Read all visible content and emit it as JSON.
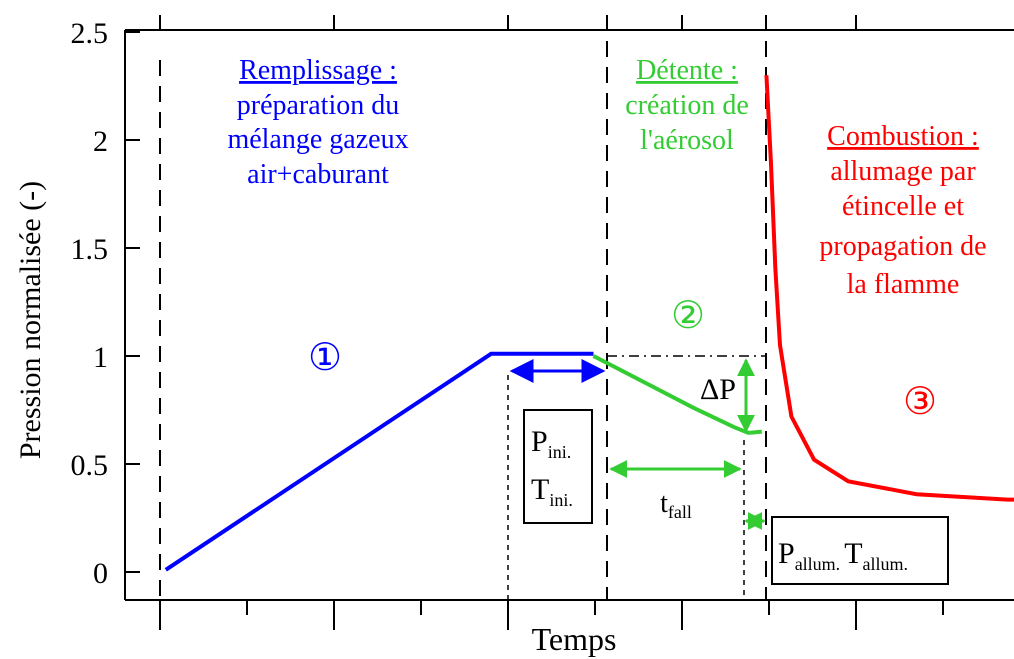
{
  "chart_data": {
    "type": "line",
    "title": "",
    "xlabel": "Temps",
    "ylabel": "Pression normalisée (-)",
    "ylim": [
      0,
      2.5
    ],
    "yticks": [
      "0",
      "0.5",
      "1",
      "1.5",
      "2",
      "2.5"
    ],
    "colors": {
      "phase1": "#0000ff",
      "phase2": "#33cc33",
      "phase3": "#ff0000",
      "axis": "#000000"
    },
    "series": [
      {
        "color": "#0000ff",
        "x": [
          0.1,
          1.53,
          1.98
        ],
        "y": [
          0.01,
          1.01,
          1.01
        ]
      },
      {
        "color": "#33cc33",
        "x": [
          1.98,
          2.2,
          2.42,
          2.6,
          2.66,
          2.67
        ],
        "y": [
          1.0,
          0.88,
          0.76,
          0.67,
          0.645,
          0.645
        ]
      },
      {
        "color": "#33cc33",
        "x": [
          2.67,
          2.72
        ],
        "y": [
          0.645,
          0.65
        ]
      },
      {
        "color": "#ff0000",
        "x": [
          2.74,
          2.76,
          2.78,
          2.8,
          2.85,
          2.95,
          3.1,
          3.4,
          3.8,
          4.2
        ],
        "y": [
          2.3,
          1.9,
          1.4,
          1.05,
          0.72,
          0.52,
          0.42,
          0.36,
          0.335,
          0.33
        ]
      }
    ],
    "phase_boundaries": [
      0.1,
      1.53,
      1.98,
      2.73
    ],
    "annotations": {
      "phase1": {
        "heading": "Remplissage :",
        "lines": [
          "préparation du",
          "mélange gazeux",
          "air+caburant"
        ],
        "marker": "①"
      },
      "phase2": {
        "heading": "Détente :",
        "lines": [
          "création de",
          "l'aérosol"
        ],
        "marker": "②"
      },
      "phase3": {
        "heading": "Combustion :",
        "lines": [
          "allumage par",
          "étincelle et",
          "propagation de",
          "la flamme"
        ],
        "marker": "③"
      },
      "delta_p": "ΔP",
      "t_fall": {
        "base": "t",
        "sub": "fall"
      },
      "initial_box": {
        "p_base": "P",
        "p_sub": "ini.",
        "t_base": "T",
        "t_sub": "ini."
      },
      "ignition_box": {
        "p_base": "P",
        "p_sub": "allum.",
        "t_base": "T",
        "t_sub": "allum."
      }
    }
  }
}
